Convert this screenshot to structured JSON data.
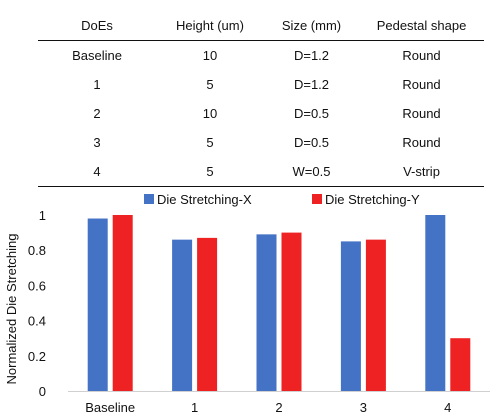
{
  "table": {
    "headers": [
      "DoEs",
      "Height (um)",
      "Size (mm)",
      "Pedestal shape"
    ],
    "rows": [
      [
        "Baseline",
        "10",
        "D=1.2",
        "Round"
      ],
      [
        "1",
        "5",
        "D=1.2",
        "Round"
      ],
      [
        "2",
        "10",
        "D=0.5",
        "Round"
      ],
      [
        "3",
        "5",
        "D=0.5",
        "Round"
      ],
      [
        "4",
        "5",
        "W=0.5",
        "V-strip"
      ]
    ]
  },
  "chart_data": {
    "type": "bar",
    "title": "",
    "xlabel": "",
    "ylabel": "Normalized Die Stretching",
    "categories": [
      "Baseline",
      "1",
      "2",
      "3",
      "4"
    ],
    "series": [
      {
        "name": "Die Stretching-X",
        "color": "#4472C4",
        "values": [
          0.98,
          0.86,
          0.89,
          0.85,
          1.0
        ]
      },
      {
        "name": "Die Stretching-Y",
        "color": "#EE2222",
        "values": [
          1.0,
          0.87,
          0.9,
          0.86,
          0.3
        ]
      }
    ],
    "ylim": [
      0,
      1
    ],
    "yticks": [
      "0",
      "0.2",
      "0.4",
      "0.6",
      "0.8",
      "1"
    ],
    "grid": false,
    "legend": "top"
  }
}
